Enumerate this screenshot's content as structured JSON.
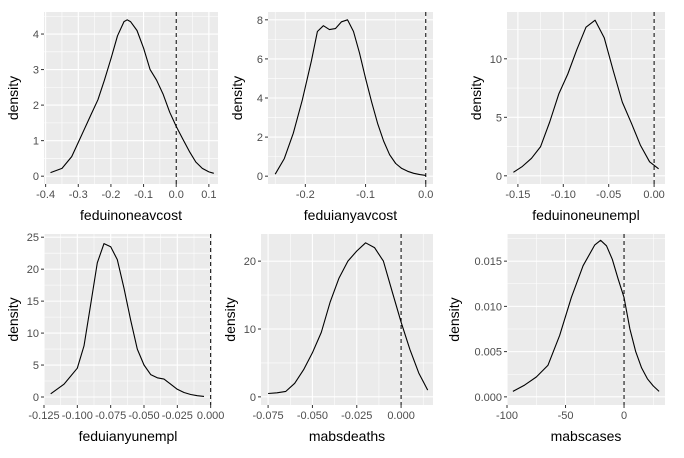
{
  "style": {
    "panel_bg": "#EBEBEB",
    "grid_major": "#FFFFFF",
    "curve_color": "#000000",
    "tick_color": "#333333",
    "text_color": "#4D4D4D"
  },
  "chart_data": [
    {
      "type": "line",
      "xlabel": "feduinoneavcost",
      "ylabel": "density",
      "xlim": [
        -0.405,
        0.128
      ],
      "ylim": [
        -0.22,
        4.62
      ],
      "xticks": [
        -0.4,
        -0.3,
        -0.2,
        -0.1,
        0.0,
        0.1
      ],
      "xtick_labels": [
        "-0.4",
        "-0.3",
        "-0.2",
        "-0.1",
        "0.0",
        "0.1"
      ],
      "yticks": [
        0,
        1,
        2,
        3,
        4
      ],
      "ytick_labels": [
        "0",
        "1",
        "2",
        "3",
        "4"
      ],
      "vline": 0.0,
      "x": [
        -0.385,
        -0.35,
        -0.32,
        -0.3,
        -0.28,
        -0.26,
        -0.24,
        -0.22,
        -0.2,
        -0.18,
        -0.16,
        -0.15,
        -0.14,
        -0.12,
        -0.1,
        -0.08,
        -0.06,
        -0.04,
        -0.02,
        0.0,
        0.02,
        0.04,
        0.06,
        0.08,
        0.1,
        0.115
      ],
      "y": [
        0.1,
        0.22,
        0.55,
        0.95,
        1.35,
        1.75,
        2.15,
        2.7,
        3.3,
        3.95,
        4.35,
        4.4,
        4.35,
        4.1,
        3.6,
        3.0,
        2.7,
        2.3,
        1.8,
        1.4,
        1.05,
        0.7,
        0.4,
        0.22,
        0.12,
        0.08
      ]
    },
    {
      "type": "line",
      "xlabel": "feduianyavcost",
      "ylabel": "density",
      "xlim": [
        -0.262,
        0.012
      ],
      "ylim": [
        -0.4,
        8.4
      ],
      "xticks": [
        -0.2,
        -0.1,
        0.0
      ],
      "xtick_labels": [
        "-0.2",
        "-0.1",
        "0.0"
      ],
      "yticks": [
        0,
        2,
        4,
        6,
        8
      ],
      "ytick_labels": [
        "0",
        "2",
        "4",
        "6",
        "8"
      ],
      "vline": 0.0,
      "x": [
        -0.25,
        -0.235,
        -0.22,
        -0.205,
        -0.19,
        -0.18,
        -0.17,
        -0.16,
        -0.15,
        -0.14,
        -0.13,
        -0.12,
        -0.11,
        -0.1,
        -0.09,
        -0.08,
        -0.07,
        -0.06,
        -0.05,
        -0.04,
        -0.03,
        -0.02,
        -0.01,
        0.0
      ],
      "y": [
        0.1,
        0.9,
        2.2,
        3.9,
        5.9,
        7.4,
        7.7,
        7.5,
        7.55,
        7.9,
        8.0,
        7.4,
        6.3,
        5.0,
        3.8,
        2.7,
        1.8,
        1.1,
        0.65,
        0.4,
        0.25,
        0.15,
        0.08,
        0.04
      ]
    },
    {
      "type": "line",
      "xlabel": "feduinoneunempl",
      "ylabel": "density",
      "xlim": [
        -0.162,
        0.012
      ],
      "ylim": [
        -0.7,
        14.0
      ],
      "xticks": [
        -0.15,
        -0.1,
        -0.05,
        0.0
      ],
      "xtick_labels": [
        "-0.15",
        "-0.10",
        "-0.05",
        "0.00"
      ],
      "yticks": [
        0,
        5,
        10
      ],
      "ytick_labels": [
        "0",
        "5",
        "10"
      ],
      "vline": 0.0,
      "x": [
        -0.155,
        -0.145,
        -0.135,
        -0.125,
        -0.115,
        -0.105,
        -0.095,
        -0.085,
        -0.075,
        -0.065,
        -0.055,
        -0.045,
        -0.035,
        -0.025,
        -0.015,
        -0.005,
        0.005
      ],
      "y": [
        0.3,
        0.8,
        1.5,
        2.5,
        4.6,
        7.0,
        8.7,
        10.8,
        12.7,
        13.3,
        11.8,
        9.0,
        6.3,
        4.5,
        2.6,
        1.2,
        0.6
      ]
    },
    {
      "type": "line",
      "xlabel": "feduianyunempl",
      "ylabel": "density",
      "xlim": [
        -0.125,
        0.001
      ],
      "ylim": [
        -1.25,
        25.5
      ],
      "xticks": [
        -0.125,
        -0.1,
        -0.075,
        -0.05,
        -0.025,
        0.0
      ],
      "xtick_labels": [
        "-0.125",
        "-0.100",
        "-0.075",
        "-0.050",
        "-0.025",
        "0.000"
      ],
      "yticks": [
        0,
        5,
        10,
        15,
        20,
        25
      ],
      "ytick_labels": [
        "0",
        "5",
        "10",
        "15",
        "20",
        "25"
      ],
      "vline": 0.0,
      "x": [
        -0.12,
        -0.11,
        -0.1,
        -0.095,
        -0.09,
        -0.085,
        -0.08,
        -0.075,
        -0.07,
        -0.065,
        -0.06,
        -0.055,
        -0.05,
        -0.045,
        -0.04,
        -0.035,
        -0.03,
        -0.025,
        -0.02,
        -0.015,
        -0.01,
        -0.005
      ],
      "y": [
        0.5,
        2.0,
        4.5,
        8.0,
        14.5,
        21.0,
        24.0,
        23.5,
        21.5,
        17.0,
        12.0,
        7.5,
        5.0,
        3.5,
        3.0,
        2.8,
        2.0,
        1.2,
        0.7,
        0.4,
        0.2,
        0.1
      ]
    },
    {
      "type": "line",
      "xlabel": "mabsdeaths",
      "ylabel": "density",
      "xlim": [
        -0.079,
        0.018
      ],
      "ylim": [
        -1.2,
        24.0
      ],
      "xticks": [
        -0.075,
        -0.05,
        -0.025,
        0.0
      ],
      "xtick_labels": [
        "-0.075",
        "-0.050",
        "-0.025",
        "0.000"
      ],
      "yticks": [
        0,
        10,
        20
      ],
      "ytick_labels": [
        "0",
        "10",
        "20"
      ],
      "vline": 0.0,
      "x": [
        -0.075,
        -0.07,
        -0.065,
        -0.06,
        -0.055,
        -0.05,
        -0.045,
        -0.04,
        -0.035,
        -0.03,
        -0.025,
        -0.02,
        -0.015,
        -0.01,
        -0.005,
        0.0,
        0.005,
        0.01,
        0.015
      ],
      "y": [
        0.5,
        0.6,
        0.8,
        2.0,
        4.0,
        6.5,
        9.5,
        14.0,
        17.5,
        20.0,
        21.5,
        22.7,
        22.0,
        20.0,
        15.5,
        11.0,
        7.0,
        3.5,
        1.0
      ]
    },
    {
      "type": "line",
      "xlabel": "mabscases",
      "ylabel": "density",
      "xlim": [
        -100,
        35
      ],
      "ylim": [
        -0.0009,
        0.018
      ],
      "xticks": [
        -100,
        -50,
        0
      ],
      "xtick_labels": [
        "-100",
        "-50",
        "0"
      ],
      "yticks": [
        0.0,
        0.005,
        0.01,
        0.015
      ],
      "ytick_labels": [
        "0.000",
        "0.005",
        "0.010",
        "0.015"
      ],
      "vline": 0,
      "x": [
        -95,
        -85,
        -75,
        -65,
        -55,
        -45,
        -35,
        -25,
        -20,
        -15,
        -10,
        -5,
        0,
        5,
        10,
        15,
        20,
        25,
        30
      ],
      "y": [
        0.0006,
        0.0013,
        0.0022,
        0.0035,
        0.0068,
        0.011,
        0.0145,
        0.0168,
        0.0173,
        0.0167,
        0.0152,
        0.013,
        0.011,
        0.0075,
        0.005,
        0.0032,
        0.002,
        0.0012,
        0.0006
      ]
    }
  ]
}
